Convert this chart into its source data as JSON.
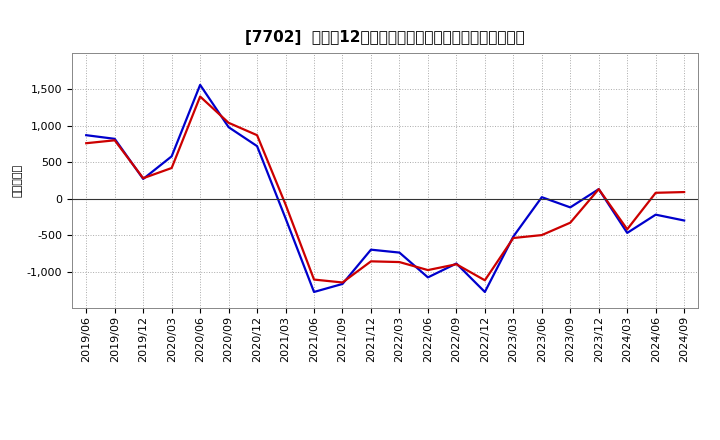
{
  "title": "[7702]  利益の12か月移動合計の対前年同期増減額の推移",
  "ylabel": "（百万円）",
  "x_labels": [
    "2019/06",
    "2019/09",
    "2019/12",
    "2020/03",
    "2020/06",
    "2020/09",
    "2020/12",
    "2021/03",
    "2021/06",
    "2021/09",
    "2021/12",
    "2022/03",
    "2022/06",
    "2022/09",
    "2022/12",
    "2023/03",
    "2023/06",
    "2023/09",
    "2023/12",
    "2024/03",
    "2024/06",
    "2024/09"
  ],
  "keijo_rieki": [
    870,
    820,
    270,
    580,
    1560,
    980,
    720,
    -270,
    -1280,
    -1170,
    -700,
    -740,
    -1080,
    -890,
    -1280,
    -520,
    20,
    -120,
    130,
    -470,
    -220,
    -300
  ],
  "toki_jun_rieki": [
    760,
    800,
    280,
    420,
    1400,
    1040,
    870,
    -80,
    -1110,
    -1150,
    -860,
    -870,
    -980,
    -900,
    -1120,
    -540,
    -500,
    -330,
    130,
    -420,
    80,
    90
  ],
  "line_color_keijo": "#0000cc",
  "line_color_toki": "#cc0000",
  "background_color": "#ffffff",
  "plot_bg_color": "#ffffff",
  "grid_color": "#aaaaaa",
  "ylim": [
    -1500,
    2000
  ],
  "yticks": [
    -1000,
    -500,
    0,
    500,
    1000,
    1500
  ],
  "title_fontsize": 11,
  "axis_fontsize": 8
}
